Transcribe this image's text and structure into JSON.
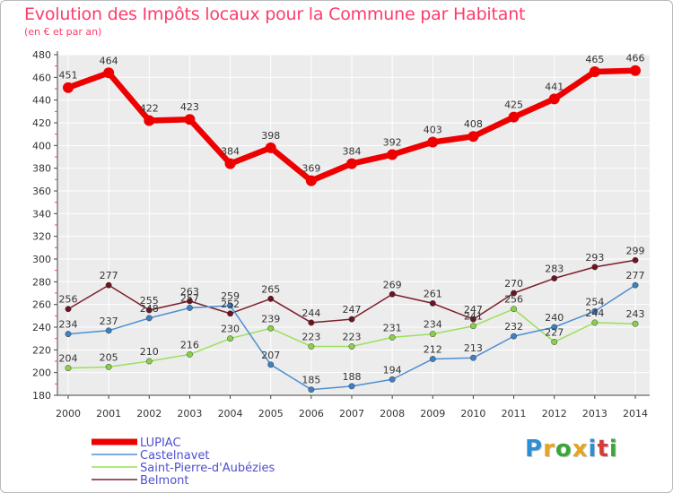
{
  "title": "Evolution des Impôts locaux pour la Commune par Habitant",
  "subtitle": "(en € et par an)",
  "brand": {
    "text": "Proxiti",
    "letters": [
      "P",
      "r",
      "o",
      "x",
      "i",
      "t",
      "i"
    ],
    "colors": [
      "#2b8fd6",
      "#e5a521",
      "#3aa63a",
      "#e5a521",
      "#2b8fd6",
      "#d63a3a",
      "#3aa63a"
    ]
  },
  "chart_data": {
    "type": "line",
    "title": "Evolution des Impôts locaux pour la Commune par Habitant",
    "subtitle": "(en € et par an)",
    "x": [
      "2000",
      "2001",
      "2002",
      "2003",
      "2004",
      "2005",
      "2006",
      "2007",
      "2008",
      "2009",
      "2010",
      "2011",
      "2012",
      "2013",
      "2014"
    ],
    "ylim": [
      180,
      480
    ],
    "yticks": [
      180,
      200,
      220,
      240,
      260,
      280,
      300,
      320,
      340,
      360,
      380,
      400,
      420,
      440,
      460,
      480
    ],
    "grid": true,
    "legend_position": "bottom-left",
    "series": [
      {
        "name": "LUPIAC",
        "color": "#ee0000",
        "marker": "#ee0000",
        "width": 6.5,
        "radius": 6,
        "values": [
          451,
          464,
          422,
          423,
          384,
          398,
          369,
          384,
          392,
          403,
          408,
          425,
          441,
          465,
          466
        ],
        "labels": [
          "451",
          "464",
          "422",
          "423",
          "384",
          "398",
          "369",
          "384",
          "392",
          "403",
          "408",
          "425",
          "441",
          "465",
          "466"
        ]
      },
      {
        "name": "Castelnavet",
        "color": "#4d8fd1",
        "marker": "#3f7fc4",
        "width": 1.5,
        "radius": 3.2,
        "values": [
          234,
          237,
          248,
          257,
          259,
          207,
          185,
          188,
          194,
          212,
          213,
          232,
          240,
          254,
          277
        ],
        "labels": [
          "234",
          "237",
          "248",
          "257",
          "259",
          "207",
          "185",
          "188",
          "194",
          "212",
          "213",
          "232",
          "240",
          "254",
          "277"
        ]
      },
      {
        "name": "Saint-Pierre-d'Aubézies",
        "color": "#9be05a",
        "marker": "#8ad14a",
        "width": 1.5,
        "radius": 3.2,
        "values": [
          204,
          205,
          210,
          216,
          230,
          239,
          223,
          223,
          231,
          234,
          241,
          256,
          227,
          244,
          243
        ],
        "labels": [
          "204",
          "205",
          "210",
          "216",
          "230",
          "239",
          "223",
          "223",
          "231",
          "234",
          "241",
          "256",
          "227",
          "244",
          "243"
        ]
      },
      {
        "name": "Belmont",
        "color": "#7a1e2a",
        "marker": "#6e1420",
        "width": 1.5,
        "radius": 3.2,
        "values": [
          256,
          277,
          255,
          263,
          252,
          265,
          244,
          247,
          269,
          261,
          247,
          270,
          283,
          293,
          299
        ],
        "labels": [
          "256",
          "277",
          "255",
          "263",
          "252",
          "265",
          "244",
          "247",
          "269",
          "261",
          "247",
          "270",
          "283",
          "293",
          "299"
        ]
      }
    ]
  }
}
